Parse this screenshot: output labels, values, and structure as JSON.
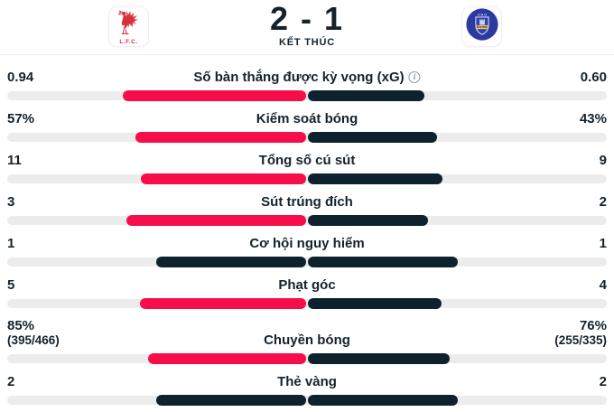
{
  "header": {
    "home_team": {
      "name": "Liverpool",
      "abbr": "L.F.C."
    },
    "away_team": {
      "name": "Everton",
      "crest_text": "Everton",
      "crest_top": "U A U"
    },
    "score": "2 - 1",
    "status": "KẾT THÚC"
  },
  "icons": {
    "info": "i"
  },
  "colors": {
    "home_bar": "#f70d4a",
    "away_bar": "#0e222e",
    "tie_bar": "#0e222e",
    "track": "#ececec",
    "text": "#15222c",
    "liverpool_red": "#d6313c",
    "everton_blue": "#2b3aa0"
  },
  "stats": [
    {
      "label": "Số bàn thắng được kỳ vọng (xG)",
      "has_info": true,
      "home": "0.94",
      "away": "0.60",
      "home_pct": 61,
      "away_pct": 39,
      "home_color": "#f70d4a",
      "away_color": "#0e222e"
    },
    {
      "label": "Kiểm soát bóng",
      "home": "57%",
      "away": "43%",
      "home_pct": 57,
      "away_pct": 43,
      "home_color": "#f70d4a",
      "away_color": "#0e222e"
    },
    {
      "label": "Tổng số cú sút",
      "home": "11",
      "away": "9",
      "home_pct": 55,
      "away_pct": 45,
      "home_color": "#f70d4a",
      "away_color": "#0e222e"
    },
    {
      "label": "Sút trúng đích",
      "home": "3",
      "away": "2",
      "home_pct": 60,
      "away_pct": 40,
      "home_color": "#f70d4a",
      "away_color": "#0e222e"
    },
    {
      "label": "Cơ hội nguy hiểm",
      "home": "1",
      "away": "1",
      "home_pct": 50,
      "away_pct": 50,
      "home_color": "#0e222e",
      "away_color": "#0e222e"
    },
    {
      "label": "Phạt góc",
      "home": "5",
      "away": "4",
      "home_pct": 55.5,
      "away_pct": 44.5,
      "home_color": "#f70d4a",
      "away_color": "#0e222e"
    },
    {
      "label": "Chuyền bóng",
      "home": "85%",
      "home_sub": "(395/466)",
      "away": "76%",
      "away_sub": "(255/335)",
      "home_pct": 52.8,
      "away_pct": 47.2,
      "home_color": "#f70d4a",
      "away_color": "#0e222e"
    },
    {
      "label": "Thẻ vàng",
      "home": "2",
      "away": "2",
      "home_pct": 50,
      "away_pct": 50,
      "home_color": "#0e222e",
      "away_color": "#0e222e"
    }
  ]
}
